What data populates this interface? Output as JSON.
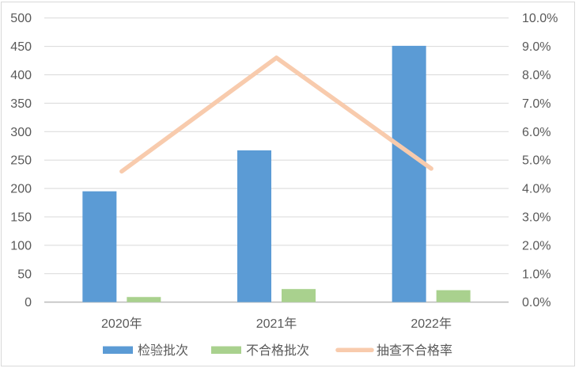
{
  "chart_data": {
    "type": "bar",
    "subtype": "combo-bar-line",
    "title": "",
    "categories": [
      "2020年",
      "2021年",
      "2022年"
    ],
    "bar_series": [
      {
        "id": "inspection-batches",
        "name": "检验批次",
        "color": "#5B9BD5",
        "axis": "left",
        "values": [
          195,
          267,
          451
        ]
      },
      {
        "id": "failed-batches",
        "name": "不合格批次",
        "color": "#A9D18E",
        "axis": "left",
        "values": [
          9,
          23,
          21
        ]
      }
    ],
    "line_series": [
      {
        "id": "sampling-failure-rate",
        "name": "抽查不合格率",
        "color": "#F8CBAD",
        "axis": "right",
        "values_percent": [
          4.6,
          8.6,
          4.7
        ]
      }
    ],
    "left_axis": {
      "min": 0,
      "max": 500,
      "step": 50,
      "tick_labels": [
        "0",
        "50",
        "100",
        "150",
        "200",
        "250",
        "300",
        "350",
        "400",
        "450",
        "500"
      ]
    },
    "right_axis": {
      "min": 0,
      "max": 10,
      "step": 1,
      "tick_labels": [
        "0.0%",
        "1.0%",
        "2.0%",
        "3.0%",
        "4.0%",
        "5.0%",
        "6.0%",
        "7.0%",
        "8.0%",
        "9.0%",
        "10.0%"
      ]
    },
    "grid": true,
    "legend_position": "bottom",
    "styles": {
      "grid_color": "#D9D9D9",
      "axis_line_color": "#BFBFBF",
      "text_color": "#595959",
      "border_color": "#D9D9D9",
      "background": "#FFFFFF"
    }
  }
}
